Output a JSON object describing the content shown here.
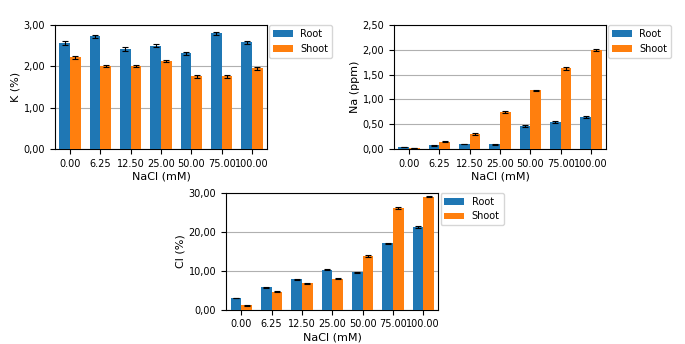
{
  "chart_data": [
    {
      "type": "bar",
      "xlabel": "NaCl (mM)",
      "ylabel": "K (%)",
      "categories": [
        "0.00",
        "6.25",
        "12.50",
        "25.00",
        "50.00",
        "75.00",
        "100.00"
      ],
      "series": [
        {
          "name": "Root",
          "values": [
            2.57,
            2.73,
            2.42,
            2.5,
            2.32,
            2.8,
            2.58
          ],
          "errors": [
            0.04,
            0.04,
            0.04,
            0.04,
            0.04,
            0.04,
            0.04
          ]
        },
        {
          "name": "Shoot",
          "values": [
            2.22,
            2.01,
            2.01,
            2.13,
            1.76,
            1.76,
            1.95
          ],
          "errors": [
            0.03,
            0.03,
            0.03,
            0.03,
            0.03,
            0.03,
            0.03
          ]
        }
      ],
      "ylim": [
        0,
        3.0
      ],
      "yticks": [
        {
          "value": 0.0,
          "label": "0,00"
        },
        {
          "value": 1.0,
          "label": "1,00"
        },
        {
          "value": 2.0,
          "label": "2,00"
        },
        {
          "value": 3.0,
          "label": "3,00"
        }
      ],
      "grid": true,
      "legend": "upper right"
    },
    {
      "type": "bar",
      "xlabel": "NaCl (mM)",
      "ylabel": "Na (ppm)",
      "categories": [
        "0.00",
        "6.25",
        "12.50",
        "25.00",
        "50.00",
        "75.00",
        "100.00"
      ],
      "series": [
        {
          "name": "Root",
          "values": [
            0.04,
            0.07,
            0.1,
            0.09,
            0.47,
            0.55,
            0.65
          ],
          "errors": [
            0.005,
            0.005,
            0.008,
            0.008,
            0.02,
            0.02,
            0.02
          ]
        },
        {
          "name": "Shoot",
          "values": [
            0.02,
            0.15,
            0.3,
            0.75,
            1.18,
            1.63,
            2.0
          ],
          "errors": [
            0.005,
            0.01,
            0.015,
            0.02,
            0.02,
            0.03,
            0.015
          ]
        }
      ],
      "ylim": [
        0,
        2.5
      ],
      "yticks": [
        {
          "value": 0.0,
          "label": "0,00"
        },
        {
          "value": 0.5,
          "label": "0,50"
        },
        {
          "value": 1.0,
          "label": "1,00"
        },
        {
          "value": 1.5,
          "label": "1,50"
        },
        {
          "value": 2.0,
          "label": "2,00"
        },
        {
          "value": 2.5,
          "label": "2,50"
        }
      ],
      "grid": true,
      "legend": "upper right"
    },
    {
      "type": "bar",
      "xlabel": "NaCl (mM)",
      "ylabel": "Cl (%)",
      "categories": [
        "0.00",
        "6.25",
        "12.50",
        "25.00",
        "50.00",
        "75.00",
        "100.00"
      ],
      "series": [
        {
          "name": "Root",
          "values": [
            3.0,
            5.7,
            7.8,
            10.2,
            9.6,
            17.0,
            21.2
          ],
          "errors": [
            0.1,
            0.15,
            0.15,
            0.15,
            0.15,
            0.2,
            0.2
          ]
        },
        {
          "name": "Shoot",
          "values": [
            1.1,
            4.6,
            6.8,
            7.9,
            13.8,
            26.0,
            29.0
          ],
          "errors": [
            0.1,
            0.15,
            0.15,
            0.1,
            0.2,
            0.2,
            0.2
          ]
        }
      ],
      "ylim": [
        0,
        30.0
      ],
      "yticks": [
        {
          "value": 0.0,
          "label": "0,00"
        },
        {
          "value": 10.0,
          "label": "10,00"
        },
        {
          "value": 20.0,
          "label": "20,00"
        },
        {
          "value": 30.0,
          "label": "30,00"
        }
      ],
      "grid": true,
      "legend": "upper right"
    }
  ]
}
